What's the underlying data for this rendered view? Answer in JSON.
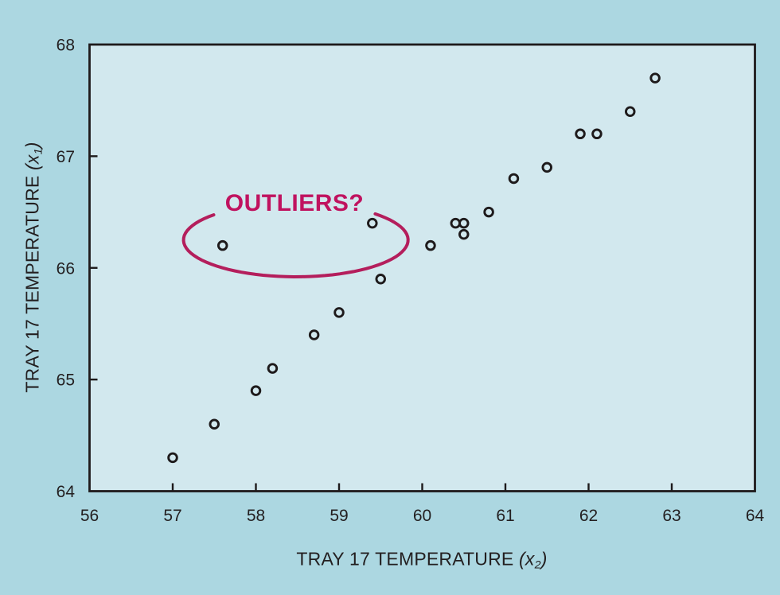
{
  "figure": {
    "background_color": "#ACD7E1",
    "plot_background_color": "#D2E8EE",
    "axis_color": "#1E1A1B",
    "text_color": "#231F20"
  },
  "chart_data": {
    "type": "scatter",
    "title": "",
    "xlabel": "TRAY 17 TEMPERATURE (x2)",
    "ylabel": "TRAY 17 TEMPERATURE (x1)",
    "xlabel_parts": {
      "prefix": "TRAY 17 TEMPERATURE ",
      "open_paren": "(",
      "variable": "x",
      "subscript": "2",
      "close_paren": ")"
    },
    "ylabel_parts": {
      "prefix": "TRAY 17 TEMPERATURE ",
      "open_paren": "(",
      "variable": "x",
      "subscript": "1",
      "close_paren": ")"
    },
    "xlim": [
      56,
      64
    ],
    "ylim": [
      64,
      68
    ],
    "x_ticks": [
      56,
      57,
      58,
      59,
      60,
      61,
      62,
      63,
      64
    ],
    "y_ticks": [
      64,
      65,
      66,
      67,
      68
    ],
    "grid": false,
    "legend": null,
    "marker": {
      "shape": "open-circle",
      "fill": "none",
      "stroke": "#1E1A1B"
    },
    "points": [
      [
        57.0,
        64.3
      ],
      [
        57.5,
        64.6
      ],
      [
        58.0,
        64.9
      ],
      [
        58.2,
        65.1
      ],
      [
        58.7,
        65.4
      ],
      [
        59.0,
        65.6
      ],
      [
        59.5,
        65.9
      ],
      [
        57.6,
        66.2
      ],
      [
        59.4,
        66.4
      ],
      [
        60.1,
        66.2
      ],
      [
        60.4,
        66.4
      ],
      [
        60.5,
        66.4
      ],
      [
        60.5,
        66.3
      ],
      [
        60.8,
        66.5
      ],
      [
        61.1,
        66.8
      ],
      [
        61.5,
        66.9
      ],
      [
        61.9,
        67.2
      ],
      [
        62.1,
        67.2
      ],
      [
        62.5,
        67.4
      ],
      [
        62.8,
        67.7
      ]
    ],
    "annotation": {
      "label": "OUTLIERS?",
      "label_color": "#C0125F",
      "ellipse_color": "#B41E5C",
      "ellipse_center": [
        58.48,
        66.25
      ],
      "ellipse_rx": 1.35,
      "ellipse_ry": 0.33,
      "ellipse_gap_deg": [
        225,
        315
      ],
      "circled_points": [
        [
          57.6,
          66.2
        ],
        [
          59.4,
          66.4
        ]
      ]
    }
  }
}
